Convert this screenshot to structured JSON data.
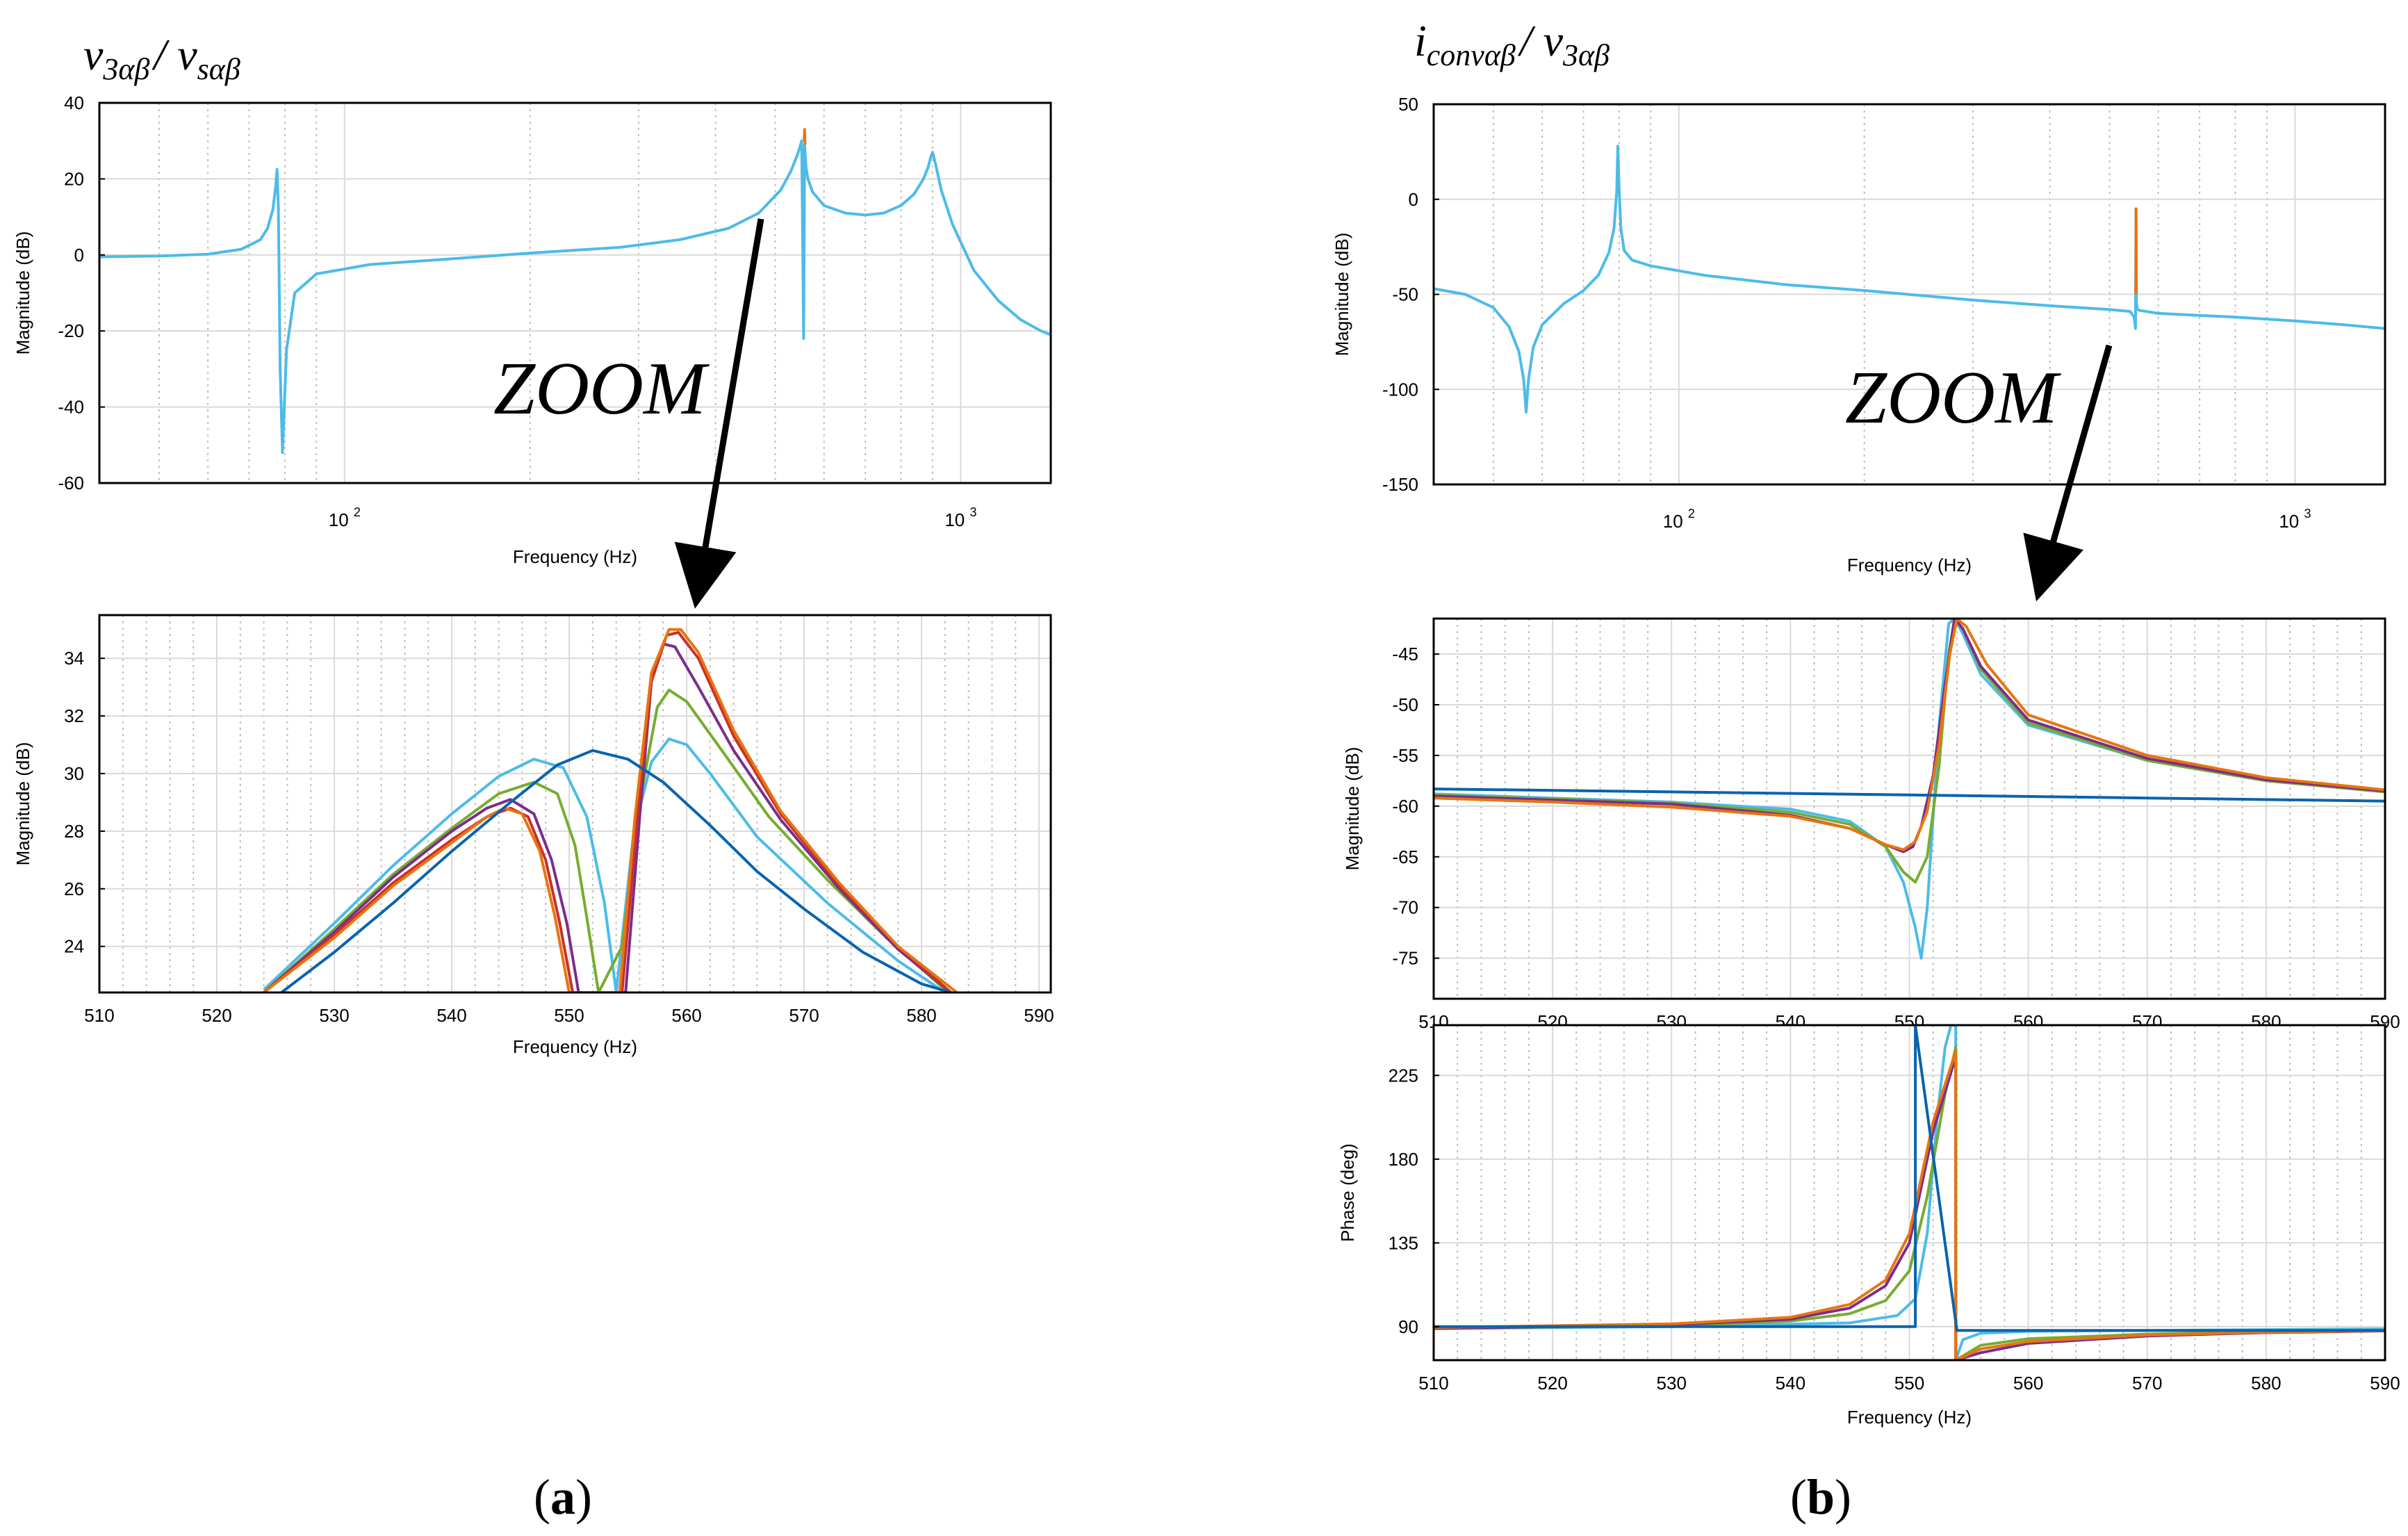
{
  "panel_a": {
    "title": {
      "main": "v",
      "sub1": "3αβ",
      "sep": "/ ",
      "main2": "v",
      "sub2": "sαβ"
    },
    "caption": {
      "open": "(",
      "letter": "a",
      "close": ")"
    }
  },
  "panel_b": {
    "title": {
      "main": "i",
      "sub1": "convαβ",
      "sep": "/ ",
      "main2": "v",
      "sub2": "3αβ"
    },
    "caption": {
      "open": "(",
      "letter": "b",
      "close": ")"
    }
  },
  "zoom_label": "ZOOM",
  "colors": {
    "cyan": "#4dbbe8",
    "blue": "#0a63ad",
    "orange": "#e8740f",
    "purple": "#7a2e8c",
    "green": "#77ac30",
    "red": "#c8312b",
    "yellow": "#e7b324"
  },
  "chart_data": [
    {
      "id": "a_top",
      "type": "line",
      "xscale": "log",
      "xlabel": "Frequency (Hz)",
      "ylabel": "Magnitude (dB)",
      "xlim": [
        40,
        1400
      ],
      "ylim": [
        -60,
        40
      ],
      "yticks": [
        40,
        20,
        0,
        -20,
        -40,
        -60
      ],
      "xticks": [
        {
          "base": "10",
          "exp": "2",
          "value": 100
        },
        {
          "base": "10",
          "exp": "3",
          "value": 1000
        }
      ],
      "series": [
        {
          "name": "magnitude",
          "color": "cyan",
          "x": [
            40,
            50,
            60,
            68,
            73,
            75,
            76.5,
            77.3,
            77.7,
            78.1,
            78.6,
            79.3,
            80.5,
            83,
            90,
            110,
            150,
            200,
            280,
            350,
            420,
            470,
            510,
            530,
            545,
            552,
            556,
            558,
            559.5,
            561,
            565,
            575,
            600,
            650,
            700,
            750,
            800,
            840,
            870,
            885,
            895,
            900,
            910,
            930,
            970,
            1050,
            1150,
            1250,
            1350,
            1400
          ],
          "y": [
            -0.5,
            -0.3,
            0.2,
            1.5,
            4,
            7,
            12,
            18,
            22.5,
            12,
            -30,
            -52,
            -25,
            -10,
            -5,
            -2.5,
            -1,
            0.5,
            2,
            4,
            7,
            11,
            17,
            22,
            27,
            30,
            -22,
            29,
            26,
            23,
            20,
            16.5,
            13,
            11,
            10.5,
            11,
            13,
            16,
            20,
            23,
            26,
            27,
            24,
            17,
            8,
            -4,
            -12,
            -17,
            -20,
            -21
          ]
        },
        {
          "name": "peak-detail",
          "color": "orange",
          "x": [
            557,
            558,
            559
          ],
          "y": [
            30,
            33,
            29
          ]
        }
      ]
    },
    {
      "id": "a_zoom",
      "type": "line",
      "xlabel": "Frequency (Hz)",
      "ylabel": "Magnitude (dB)",
      "xlim": [
        510,
        591
      ],
      "ylim": [
        22.4,
        35.5
      ],
      "xticks": [
        510,
        520,
        530,
        540,
        550,
        560,
        570,
        580,
        590
      ],
      "yticks": [
        24,
        26,
        28,
        30,
        32,
        34
      ],
      "series": [
        {
          "name": "curve-1",
          "color": "cyan",
          "x": [
            524,
            530,
            535,
            540,
            544,
            547,
            549.5,
            551.5,
            553,
            554,
            555.5,
            557,
            558.5,
            560,
            562,
            566,
            572,
            578,
            582
          ],
          "y": [
            22.5,
            24.8,
            26.8,
            28.6,
            29.9,
            30.5,
            30.2,
            28.5,
            25.5,
            22.4,
            28,
            30.4,
            31.2,
            31,
            30,
            27.8,
            25.5,
            23.5,
            22.4
          ]
        },
        {
          "name": "curve-2",
          "color": "green",
          "x": [
            524,
            530,
            535,
            540,
            544,
            547,
            549,
            550.5,
            551.5,
            552.5,
            554.5,
            556,
            557.5,
            558.5,
            560,
            563,
            567,
            572,
            577,
            582
          ],
          "y": [
            22.4,
            24.6,
            26.5,
            28.1,
            29.3,
            29.7,
            29.3,
            27.5,
            25,
            22.4,
            24,
            29,
            32.3,
            32.9,
            32.5,
            30.8,
            28.5,
            26.3,
            24.3,
            22.5
          ]
        },
        {
          "name": "curve-3",
          "color": "purple",
          "x": [
            524,
            530,
            535,
            540,
            543,
            545,
            547,
            548.5,
            549.8,
            550.8,
            554.8,
            556,
            557,
            558,
            559,
            561,
            564,
            568,
            573,
            578,
            582.5
          ],
          "y": [
            22.4,
            24.5,
            26.4,
            28,
            28.8,
            29.1,
            28.6,
            27,
            24.8,
            22.4,
            22.4,
            28.5,
            33.2,
            34.5,
            34.4,
            33,
            30.8,
            28.4,
            26,
            23.9,
            22.4
          ]
        },
        {
          "name": "curve-4",
          "color": "red",
          "x": [
            524,
            530,
            535,
            540,
            543,
            545,
            546.5,
            548,
            549.2,
            550.3,
            554.5,
            555.8,
            557,
            558.3,
            559.3,
            561,
            564,
            568,
            573,
            578,
            582.5
          ],
          "y": [
            22.4,
            24.4,
            26.2,
            27.7,
            28.5,
            28.8,
            28.5,
            27,
            24.8,
            22.4,
            22.4,
            28.5,
            33.2,
            34.8,
            34.9,
            34,
            31.3,
            28.6,
            26.1,
            24,
            22.4
          ]
        },
        {
          "name": "curve-5",
          "color": "orange",
          "x": [
            524,
            530,
            535,
            540,
            543,
            544.5,
            546,
            547.5,
            548.8,
            550,
            554.3,
            555.6,
            557,
            558.5,
            559.5,
            561,
            564,
            568,
            573,
            578,
            583
          ],
          "y": [
            22.4,
            24.3,
            26.1,
            27.6,
            28.5,
            28.8,
            28.6,
            27.3,
            25,
            22.4,
            22.4,
            28.5,
            33.5,
            35,
            35,
            34.2,
            31.5,
            28.7,
            26.2,
            24,
            22.4
          ]
        },
        {
          "name": "curve-6",
          "color": "blue",
          "x": [
            525.5,
            530,
            535,
            540,
            545,
            549,
            552,
            555,
            558,
            562,
            566,
            570,
            575,
            580,
            582.5
          ],
          "y": [
            22.4,
            23.8,
            25.5,
            27.3,
            29,
            30.3,
            30.8,
            30.5,
            29.7,
            28.2,
            26.6,
            25.3,
            23.8,
            22.7,
            22.4
          ]
        }
      ]
    },
    {
      "id": "b_top",
      "type": "line",
      "xscale": "log",
      "xlabel": "Frequency (Hz)",
      "ylabel": "Magnitude (dB)",
      "xlim": [
        40,
        1400
      ],
      "ylim": [
        -150,
        50
      ],
      "yticks": [
        50,
        0,
        -50,
        -100,
        -150
      ],
      "xticks": [
        {
          "base": "10",
          "exp": "2",
          "value": 100
        },
        {
          "base": "10",
          "exp": "3",
          "value": 1000
        }
      ],
      "series": [
        {
          "name": "magnitude",
          "color": "cyan",
          "x": [
            40,
            45,
            50,
            53,
            55,
            56,
            56.5,
            57,
            58,
            60,
            65,
            70,
            74,
            77,
            78.5,
            79.3,
            79.6,
            80,
            80.5,
            81.5,
            84,
            90,
            110,
            150,
            200,
            300,
            400,
            500,
            540,
            548,
            551,
            552,
            553,
            555,
            560,
            600,
            800,
            1000,
            1200,
            1400
          ],
          "y": [
            -47,
            -50,
            -57,
            -67,
            -80,
            -95,
            -112,
            -95,
            -78,
            -66,
            -55,
            -48,
            -40,
            -28,
            -15,
            5,
            28,
            5,
            -15,
            -27,
            -32,
            -35,
            -40,
            -45,
            -48,
            -53,
            -56,
            -58,
            -59,
            -62,
            -68,
            -5,
            -55,
            -58,
            -58.5,
            -60,
            -62,
            -64,
            -66,
            -68
          ]
        },
        {
          "name": "peak-detail",
          "color": "orange",
          "x": [
            551.5,
            552,
            552.5
          ],
          "y": [
            -50,
            -5,
            -50
          ]
        }
      ]
    },
    {
      "id": "b_zoom_mag",
      "type": "line",
      "xlabel": "",
      "ylabel": "Magnitude (dB)",
      "xlim": [
        510,
        590
      ],
      "ylim": [
        -79,
        -41.5
      ],
      "yticks": [
        -45,
        -50,
        -55,
        -60,
        -65,
        -70,
        -75
      ],
      "xticks": [
        510,
        520,
        530,
        540,
        550,
        560,
        570,
        580,
        590
      ],
      "series": [
        {
          "name": "curve-1",
          "color": "cyan",
          "x": [
            510,
            520,
            530,
            540,
            545,
            548,
            549.5,
            550.5,
            551,
            551.5,
            552.5,
            553.3,
            553.8,
            554.5,
            556,
            560,
            570,
            580,
            590
          ],
          "y": [
            -58.8,
            -59.2,
            -59.6,
            -60.3,
            -61.5,
            -64,
            -67.5,
            -72,
            -75,
            -70,
            -52,
            -42,
            -41.5,
            -43,
            -47,
            -52,
            -55.5,
            -57.5,
            -58.6
          ]
        },
        {
          "name": "curve-2",
          "color": "green",
          "x": [
            510,
            520,
            530,
            540,
            545,
            548,
            549.5,
            550.5,
            551.5,
            552.5,
            553.3,
            553.8,
            554.5,
            556,
            560,
            570,
            580,
            590
          ],
          "y": [
            -58.9,
            -59.3,
            -59.7,
            -60.6,
            -61.8,
            -64,
            -66.5,
            -67.5,
            -65,
            -56,
            -45,
            -41.5,
            -42.5,
            -46.5,
            -51.8,
            -55.5,
            -57.5,
            -58.6
          ]
        },
        {
          "name": "curve-3",
          "color": "purple",
          "x": [
            510,
            520,
            530,
            540,
            545,
            548,
            549.5,
            550.3,
            551,
            552,
            553,
            553.8,
            554.5,
            556,
            560,
            570,
            580,
            590
          ],
          "y": [
            -59,
            -59.4,
            -59.8,
            -60.9,
            -62.2,
            -63.8,
            -64.5,
            -64,
            -62,
            -57,
            -48,
            -41.5,
            -42.5,
            -46.2,
            -51.5,
            -55.3,
            -57.4,
            -58.5
          ]
        },
        {
          "name": "curve-4",
          "color": "orange",
          "x": [
            510,
            520,
            530,
            540,
            545,
            548,
            549.5,
            550.5,
            551.5,
            552.5,
            553.4,
            554,
            554.8,
            556.5,
            560,
            570,
            580,
            590
          ],
          "y": [
            -59.2,
            -59.6,
            -60.1,
            -61,
            -62.2,
            -63.8,
            -64.3,
            -63.5,
            -60.5,
            -54,
            -45,
            -41.5,
            -42.3,
            -46,
            -51,
            -55,
            -57.2,
            -58.4
          ]
        },
        {
          "name": "curve-5",
          "color": "blue",
          "x": [
            510,
            530,
            550,
            570,
            590
          ],
          "y": [
            -58.3,
            -58.6,
            -58.9,
            -59.2,
            -59.5
          ]
        }
      ]
    },
    {
      "id": "b_zoom_phase",
      "type": "line",
      "xlabel": "Frequency (Hz)",
      "ylabel": "Phase (deg)",
      "xlim": [
        510,
        590
      ],
      "ylim": [
        72,
        252
      ],
      "yticks": [
        225,
        180,
        135,
        90
      ],
      "xticks": [
        510,
        520,
        530,
        540,
        550,
        560,
        570,
        580,
        590
      ],
      "series": [
        {
          "name": "curve-1",
          "color": "cyan",
          "x": [
            510,
            530,
            545,
            549,
            550.5,
            551.5,
            552.3,
            553,
            553.5,
            553.9,
            553.9,
            554.5,
            556,
            560,
            570,
            590
          ],
          "y": [
            89,
            90,
            92,
            96,
            105,
            140,
            200,
            240,
            252,
            252,
            72,
            83,
            86.5,
            87.5,
            88,
            88.8
          ]
        },
        {
          "name": "curve-2",
          "color": "green",
          "x": [
            510,
            530,
            540,
            545,
            548,
            550,
            551.5,
            553,
            553.9,
            553.9,
            556,
            560,
            570,
            580,
            590
          ],
          "y": [
            89,
            90.5,
            93,
            97,
            104,
            120,
            160,
            215,
            240,
            72,
            80,
            83.5,
            86,
            87.3,
            88
          ]
        },
        {
          "name": "curve-3",
          "color": "purple",
          "x": [
            510,
            530,
            540,
            545,
            548,
            550,
            552,
            553.9,
            553.9,
            556,
            560,
            570,
            580,
            590
          ],
          "y": [
            89,
            91,
            94,
            100,
            112,
            135,
            195,
            235,
            72,
            76,
            81,
            85,
            86.8,
            87.7
          ]
        },
        {
          "name": "curve-4",
          "color": "orange",
          "x": [
            510,
            530,
            540,
            545,
            548,
            550,
            552,
            553.9,
            553.9,
            556,
            560,
            570,
            580,
            590
          ],
          "y": [
            89.5,
            91.5,
            95,
            102,
            115,
            140,
            200,
            238,
            72,
            78,
            82,
            85.5,
            87,
            87.8
          ]
        },
        {
          "name": "curve-5",
          "color": "blue",
          "x": [
            510,
            550.5,
            550.5,
            554,
            590
          ],
          "y": [
            90,
            90,
            252,
            88,
            88
          ]
        }
      ]
    }
  ]
}
